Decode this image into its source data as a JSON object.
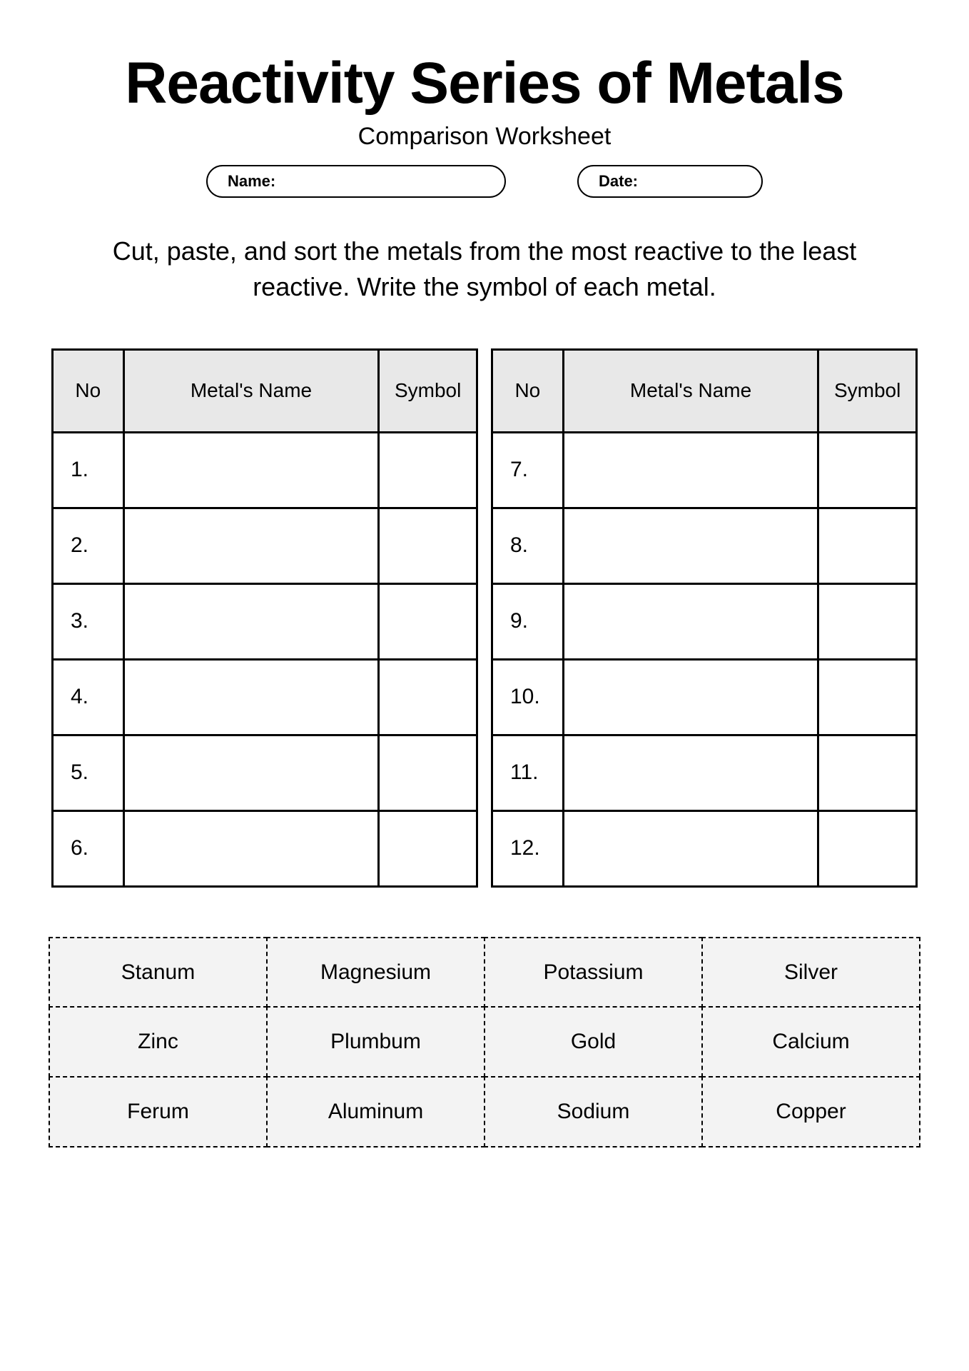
{
  "header": {
    "title": "Reactivity Series of Metals",
    "subtitle": "Comparison Worksheet",
    "name_label": "Name:",
    "date_label": "Date:"
  },
  "instructions": "Cut, paste, and sort the metals from the most reactive to the least reactive. Write the symbol of each metal.",
  "table": {
    "columns": [
      "No",
      "Metal's Name",
      "Symbol"
    ],
    "left_rows": [
      "1.",
      "2.",
      "3.",
      "4.",
      "5.",
      "6."
    ],
    "right_rows": [
      "7.",
      "8.",
      "9.",
      "10.",
      "11.",
      "12."
    ],
    "header_bg": "#e8e8e8",
    "border_color": "#000000"
  },
  "cutouts": {
    "items": [
      "Stanum",
      "Magnesium",
      "Potassium",
      "Silver",
      "Zinc",
      "Plumbum",
      "Gold",
      "Calcium",
      "Ferum",
      "Aluminum",
      "Sodium",
      "Copper"
    ],
    "cell_bg": "#f3f3f3"
  },
  "colors": {
    "page_bg": "#ffffff",
    "text": "#000000"
  }
}
